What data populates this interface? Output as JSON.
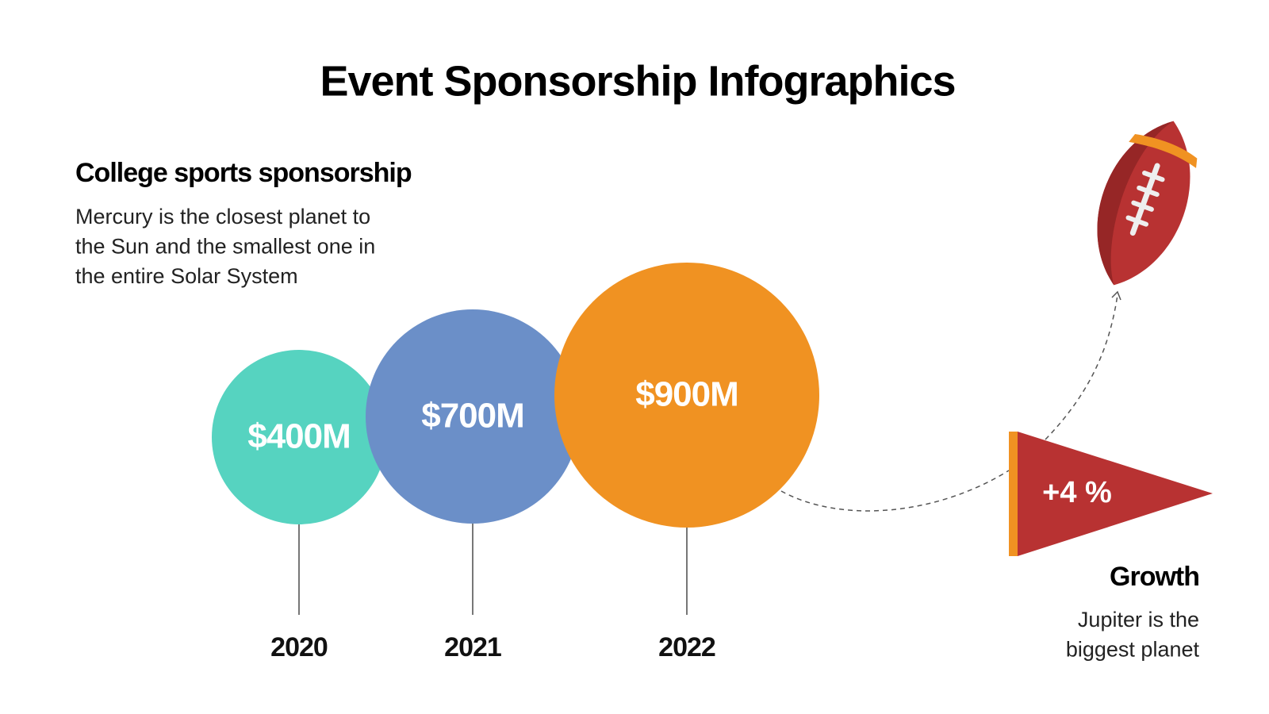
{
  "header": {
    "title": "Event Sponsorship Infographics"
  },
  "intro": {
    "heading": "College sports sponsorship",
    "lines": [
      "Mercury is the closest planet to",
      "the Sun and the smallest one in",
      "the entire Solar System"
    ]
  },
  "items": [
    {
      "value": "$400M",
      "year": "2020"
    },
    {
      "value": "$700M",
      "year": "2021"
    },
    {
      "value": "$900M",
      "year": "2022"
    }
  ],
  "growth": {
    "badge": "+4 %",
    "heading": "Growth",
    "lines": [
      "Jupiter is the",
      "biggest planet"
    ]
  }
}
